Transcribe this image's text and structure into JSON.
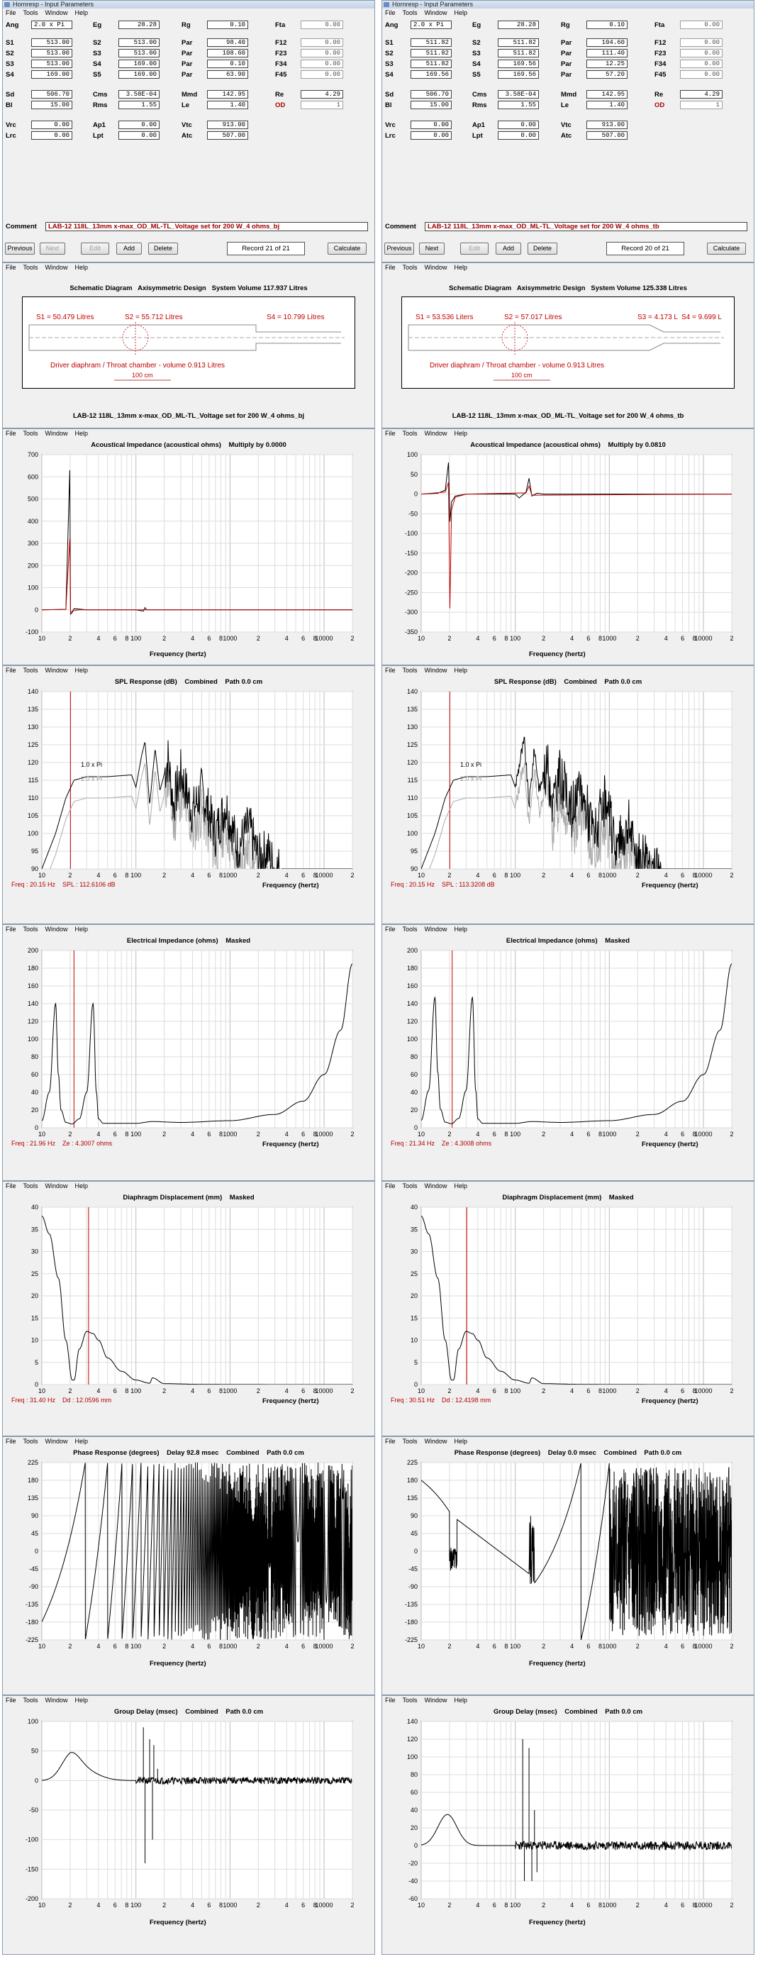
{
  "left": {
    "window_title": "Hornresp - Input Parameters",
    "record": "Record 21 of 21",
    "params": {
      "Ang": "2.0 x Pi",
      "Eg": "28.28",
      "Rg": "0.10",
      "Fta": "0.00",
      "S1": "513.00",
      "S2": "513.00",
      "Par1": "98.40",
      "F12": "0.00",
      "S2b": "513.00",
      "S3": "513.00",
      "Par2": "108.60",
      "F23": "0.00",
      "S3b": "513.00",
      "S4": "169.00",
      "Par3": "0.10",
      "F34": "0.00",
      "S4b": "169.00",
      "S5": "169.00",
      "Par4": "63.90",
      "F45": "0.00",
      "Sd": "506.70",
      "Cms": "3.58E-04",
      "Mmd": "142.95",
      "Re": "4.29",
      "Bl": "15.00",
      "Rms": "1.55",
      "Le": "1.40",
      "OD": "1",
      "Vrc": "0.00",
      "Ap1": "0.00",
      "Vtc": "913.00",
      "Lrc": "0.00",
      "Lpt": "0.00",
      "Atc": "507.00"
    },
    "comment": "LAB-12 118L_13mm x-max_OD_ML-TL_Voltage set for 200 W_4 ohms_bj",
    "schematic": {
      "title": "Schematic Diagram   Axisymmetric Design   System Volume 117.937 Litres",
      "s1": "S1 = 50.479 Litres",
      "s2": "S2 = 55.712 Litres",
      "s3": "",
      "s4": "S4 = 10.799 Litres",
      "driver": "Driver diaphram / Throat chamber - volume 0.913 Litres",
      "scale": "100 cm",
      "caption": "LAB-12 118L_13mm x-max_OD_ML-TL_Voltage set for 200 W_4 ohms_bj"
    },
    "acoustic_title": "Acoustical Impedance (acoustical ohms)    Multiply by 0.0000",
    "spl_readout": "Freq : 20.15 Hz    SPL : 112.6106 dB",
    "ei_readout": "Freq : 21.96 Hz    Ze : 4.3007 ohms",
    "dd_readout": "Freq : 31.40 Hz    Dd : 12.0596 mm",
    "phase_title": "Phase Response (degrees)    Delay 92.8 msec    Combined    Path 0.0 cm"
  },
  "right": {
    "window_title": "Hornresp - Input Parameters",
    "record": "Record 20 of 21",
    "params": {
      "Ang": "2.0 x Pi",
      "Eg": "28.28",
      "Rg": "0.10",
      "Fta": "0.00",
      "S1": "511.82",
      "S2": "511.82",
      "Par1": "104.60",
      "F12": "0.00",
      "S2b": "511.82",
      "S3": "511.82",
      "Par2": "111.40",
      "F23": "0.00",
      "S3b": "511.82",
      "S4": "169.56",
      "Par3": "12.25",
      "F34": "0.00",
      "S4b": "169.56",
      "S5": "169.56",
      "Par4": "57.20",
      "F45": "0.00",
      "Sd": "506.70",
      "Cms": "3.58E-04",
      "Mmd": "142.95",
      "Re": "4.29",
      "Bl": "15.00",
      "Rms": "1.55",
      "Le": "1.40",
      "OD": "1",
      "Vrc": "0.00",
      "Ap1": "0.00",
      "Vtc": "913.00",
      "Lrc": "0.00",
      "Lpt": "0.00",
      "Atc": "507.00"
    },
    "comment": "LAB-12 118L_13mm x-max_OD_ML-TL_Voltage set for 200 W_4 ohms_tb",
    "schematic": {
      "title": "Schematic Diagram   Axisymmetric Design   System Volume 125.338 Litres",
      "s1": "S1 = 53.536 Liters",
      "s2": "S2 = 57.017 Litres",
      "s3": "S3 = 4.173 L",
      "s4": "S4 = 9.699 L",
      "driver": "Driver diaphram / Throat chamber - volume 0.913 Litres",
      "scale": "100 cm",
      "caption": "LAB-12 118L_13mm x-max_OD_ML-TL_Voltage set for 200 W_4 ohms_tb"
    },
    "acoustic_title": "Acoustical Impedance (acoustical ohms)    Multiply by 0.0810",
    "spl_readout": "Freq : 20.15 Hz    SPL : 113.3208 dB",
    "ei_readout": "Freq : 21.34 Hz    Ze : 4.3008 ohms",
    "dd_readout": "Freq : 30.51 Hz    Dd : 12.4198 mm",
    "phase_title": "Phase Response (degrees)    Delay 0.0 msec    Combined    Path 0.0 cm"
  },
  "labels": {
    "menu": [
      "File",
      "Tools",
      "Window",
      "Help"
    ],
    "comment": "Comment",
    "buttons": {
      "previous": "Previous",
      "next": "Next",
      "edit": "Edit",
      "add": "Add",
      "delete": "Delete",
      "calculate": "Calculate"
    },
    "freq_axis": "Frequency (hertz)",
    "x_ticks": [
      "10",
      "2",
      "4",
      "6",
      "8",
      "100",
      "2",
      "4",
      "6",
      "8",
      "1000",
      "2",
      "4",
      "6",
      "8",
      "10000",
      "2"
    ],
    "spl_title": "SPL Response (dB)    Combined    Path 0.0 cm",
    "spl_series": [
      "1.0 x Pi",
      "2.0 x Pi"
    ],
    "ei_title": "Electrical Impedance (ohms)    Masked",
    "dd_title": "Diaphragm Displacement (mm)    Masked",
    "gd_title": "Group Delay (msec)    Combined    Path 0.0 cm",
    "param_labels": {
      "Ang": "Ang",
      "Eg": "Eg",
      "Rg": "Rg",
      "Fta": "Fta",
      "S1": "S1",
      "S2": "S2",
      "S3": "S3",
      "S4": "S4",
      "S5": "S5",
      "Par": "Par",
      "F12": "F12",
      "F23": "F23",
      "F34": "F34",
      "F45": "F45",
      "Sd": "Sd",
      "Cms": "Cms",
      "Mmd": "Mmd",
      "Re": "Re",
      "Bl": "Bl",
      "Rms": "Rms",
      "Le": "Le",
      "OD": "OD",
      "Vrc": "Vrc",
      "Ap1": "Ap1",
      "Vtc": "Vtc",
      "Lrc": "Lrc",
      "Lpt": "Lpt",
      "Atc": "Atc"
    }
  },
  "chart_data": [
    {
      "type": "line",
      "title": "Acoustical Impedance (acoustical ohms)    Multiply by 0.0000",
      "xlabel": "Frequency (hertz)",
      "xscale": "log",
      "xlim": [
        10,
        20000
      ],
      "ylim": [
        -100,
        700
      ],
      "yticks": [
        -100,
        0,
        100,
        200,
        300,
        400,
        500,
        600,
        700
      ],
      "series": [
        {
          "color": "#000000",
          "x": [
            10,
            18,
            19.8,
            20.2,
            21,
            22,
            25,
            30,
            40,
            100,
            120,
            125,
            130,
            200,
            300,
            20000
          ],
          "y": [
            0,
            2,
            630,
            -20,
            -12,
            5,
            3,
            0,
            0,
            0,
            -6,
            10,
            0,
            0,
            0,
            0
          ]
        },
        {
          "color": "#c00000",
          "x": [
            10,
            18,
            19.8,
            20.2,
            21,
            25,
            40,
            20000
          ],
          "y": [
            0,
            2,
            320,
            -20,
            -5,
            0,
            0,
            0
          ]
        }
      ]
    },
    {
      "type": "line",
      "title": "Acoustical Impedance (acoustical ohms)    Multiply by 0.0810",
      "xlabel": "Frequency (hertz)",
      "xscale": "log",
      "xlim": [
        10,
        20000
      ],
      "ylim": [
        -350,
        100
      ],
      "yticks": [
        -350,
        -300,
        -250,
        -200,
        -150,
        -100,
        -50,
        0,
        50,
        100
      ],
      "series": [
        {
          "color": "#000000",
          "x": [
            10,
            15,
            18,
            19.5,
            20.2,
            21,
            23,
            30,
            60,
            100,
            110,
            130,
            140,
            150,
            170,
            200,
            300,
            20000
          ],
          "y": [
            0,
            2,
            10,
            80,
            -70,
            -20,
            -5,
            0,
            0,
            0,
            -10,
            5,
            40,
            -5,
            2,
            0,
            0,
            0
          ]
        },
        {
          "color": "#c00000",
          "x": [
            10,
            18,
            19.5,
            20.2,
            21,
            23,
            30,
            130,
            140,
            150,
            20000
          ],
          "y": [
            0,
            5,
            30,
            -290,
            -40,
            -8,
            0,
            3,
            20,
            -3,
            0
          ]
        }
      ]
    },
    {
      "type": "line",
      "title": "SPL Response (dB)    Combined    Path 0.0 cm",
      "xlabel": "Frequency (hertz)",
      "xscale": "log",
      "xlim": [
        10,
        20000
      ],
      "ylim": [
        90,
        140
      ],
      "yticks": [
        90,
        95,
        100,
        105,
        110,
        115,
        120,
        125,
        130,
        135,
        140
      ],
      "series": [
        {
          "name": "1.0 x Pi",
          "color": "#000000",
          "x": [
            10,
            14,
            18,
            22,
            30,
            50,
            90,
            100,
            120,
            130,
            150,
            170,
            200,
            300,
            500,
            800,
            1000,
            1500,
            2000,
            3000,
            5000,
            8000,
            10000
          ],
          "y": [
            90,
            100,
            110,
            115,
            116,
            116,
            116,
            113,
            119,
            126,
            110,
            118,
            114,
            111,
            106,
            103,
            100,
            96,
            92,
            90,
            90,
            90,
            90
          ]
        },
        {
          "name": "2.0 x Pi",
          "color": "#aaaaaa",
          "x": [
            10,
            14,
            18,
            22,
            30,
            50,
            90,
            100,
            120,
            130,
            150,
            170,
            200,
            300,
            500,
            800,
            1000,
            1500,
            2000,
            3000,
            5000,
            8000,
            10000
          ],
          "y": [
            90,
            94,
            104,
            109,
            110,
            110,
            110,
            107,
            113,
            120,
            104,
            112,
            108,
            105,
            100,
            97,
            94,
            90,
            90,
            90,
            90,
            90,
            90
          ]
        }
      ]
    },
    {
      "type": "line",
      "title": "Electrical Impedance (ohms)    Masked",
      "xlabel": "Frequency (hertz)",
      "xscale": "log",
      "xlim": [
        10,
        20000
      ],
      "ylim": [
        0,
        200
      ],
      "yticks": [
        0,
        20,
        40,
        60,
        80,
        100,
        120,
        140,
        160,
        180,
        200
      ],
      "series": [
        {
          "color": "#000000",
          "x": [
            10,
            12,
            14,
            15,
            16,
            18,
            21,
            25,
            30,
            35,
            38,
            40,
            45,
            60,
            100,
            150,
            300,
            1000,
            3000,
            6000,
            10000,
            15000,
            20000
          ],
          "y": [
            8,
            40,
            140,
            60,
            20,
            6,
            4.3,
            10,
            40,
            140,
            40,
            10,
            5,
            5,
            5,
            7,
            6,
            8,
            15,
            30,
            60,
            110,
            185
          ]
        }
      ]
    },
    {
      "type": "line",
      "title": "Diaphragm Displacement (mm)    Masked",
      "xlabel": "Frequency (hertz)",
      "xscale": "log",
      "xlim": [
        10,
        20000
      ],
      "ylim": [
        0,
        40
      ],
      "yticks": [
        0,
        5,
        10,
        15,
        20,
        25,
        30,
        35,
        40
      ],
      "series": [
        {
          "color": "#000000",
          "x": [
            10,
            12,
            15,
            18,
            21,
            22,
            25,
            30,
            35,
            40,
            50,
            70,
            100,
            140,
            150,
            200,
            500,
            1000,
            20000
          ],
          "y": [
            38,
            34,
            24,
            10,
            1,
            1,
            8,
            12,
            11.5,
            10,
            6,
            3,
            1,
            0.3,
            1.5,
            0.2,
            0.05,
            0.01,
            0
          ]
        }
      ]
    },
    {
      "type": "line",
      "title": "Phase Response (degrees)    Delay 92.8 msec    Combined    Path 0.0 cm",
      "xlabel": "Frequency (hertz)",
      "xscale": "log",
      "xlim": [
        10,
        20000
      ],
      "ylim": [
        -225,
        225
      ],
      "yticks": [
        -225,
        -180,
        -135,
        -90,
        -45,
        0,
        45,
        90,
        135,
        180,
        225
      ]
    },
    {
      "type": "line",
      "title": "Group Delay (msec)    Combined    Path 0.0 cm",
      "xlabel": "Frequency (hertz)",
      "xscale": "log",
      "xlim": [
        10,
        20000
      ],
      "ylim": [
        -200,
        100
      ],
      "yticks": [
        -200,
        -150,
        -100,
        -50,
        0,
        50,
        100
      ]
    },
    {
      "type": "line",
      "title": "Group Delay (msec)    Combined    Path 0.0 cm",
      "xlabel": "Frequency (hertz)",
      "xscale": "log",
      "xlim": [
        10,
        20000
      ],
      "ylim": [
        -60,
        140
      ],
      "yticks": [
        -60,
        -40,
        -20,
        0,
        20,
        40,
        60,
        80,
        100,
        120,
        140
      ]
    }
  ]
}
